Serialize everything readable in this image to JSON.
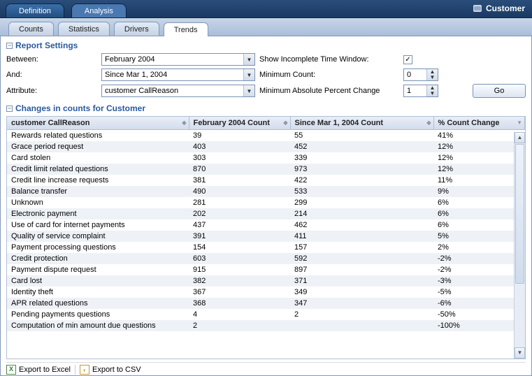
{
  "brand": {
    "label": "Customer"
  },
  "top_tabs": [
    {
      "label": "Definition",
      "active": false
    },
    {
      "label": "Analysis",
      "active": true
    }
  ],
  "sub_tabs": [
    {
      "label": "Counts",
      "active": false
    },
    {
      "label": "Statistics",
      "active": false
    },
    {
      "label": "Drivers",
      "active": false
    },
    {
      "label": "Trends",
      "active": true
    }
  ],
  "sections": {
    "settings_title": "Report Settings",
    "changes_title": "Changes in counts for Customer"
  },
  "settings": {
    "between_label": "Between:",
    "between_value": "February 2004",
    "and_label": "And:",
    "and_value": "Since Mar 1, 2004",
    "attribute_label": "Attribute:",
    "attribute_value": "customer CallReason",
    "show_incomplete_label": "Show Incomplete Time Window:",
    "show_incomplete_checked": true,
    "min_count_label": "Minimum Count:",
    "min_count_value": "0",
    "min_abs_pct_label": "Minimum Absolute Percent Change",
    "min_abs_pct_value": "1",
    "go_label": "Go"
  },
  "table": {
    "columns": [
      {
        "label": "customer CallReason",
        "key": "reason"
      },
      {
        "label": "February 2004 Count",
        "key": "c1"
      },
      {
        "label": "Since Mar 1, 2004 Count",
        "key": "c2"
      },
      {
        "label": "% Count Change",
        "key": "pct"
      }
    ],
    "rows": [
      {
        "reason": "Rewards related questions",
        "c1": "39",
        "c2": "55",
        "pct": "41%"
      },
      {
        "reason": "Grace period request",
        "c1": "403",
        "c2": "452",
        "pct": "12%"
      },
      {
        "reason": "Card stolen",
        "c1": "303",
        "c2": "339",
        "pct": "12%"
      },
      {
        "reason": "Credit limit related questions",
        "c1": "870",
        "c2": "973",
        "pct": "12%"
      },
      {
        "reason": "Credit line increase requests",
        "c1": "381",
        "c2": "422",
        "pct": "11%"
      },
      {
        "reason": "Balance transfer",
        "c1": "490",
        "c2": "533",
        "pct": "9%"
      },
      {
        "reason": "Unknown",
        "c1": "281",
        "c2": "299",
        "pct": "6%"
      },
      {
        "reason": "Electronic payment",
        "c1": "202",
        "c2": "214",
        "pct": "6%"
      },
      {
        "reason": "Use of card for internet payments",
        "c1": "437",
        "c2": "462",
        "pct": "6%"
      },
      {
        "reason": "Quality of service complaint",
        "c1": "391",
        "c2": "411",
        "pct": "5%"
      },
      {
        "reason": "Payment processing questions",
        "c1": "154",
        "c2": "157",
        "pct": "2%"
      },
      {
        "reason": "Credit protection",
        "c1": "603",
        "c2": "592",
        "pct": "-2%"
      },
      {
        "reason": "Payment dispute request",
        "c1": "915",
        "c2": "897",
        "pct": "-2%"
      },
      {
        "reason": "Card lost",
        "c1": "382",
        "c2": "371",
        "pct": "-3%"
      },
      {
        "reason": "Identity theft",
        "c1": "367",
        "c2": "349",
        "pct": "-5%"
      },
      {
        "reason": "APR related questions",
        "c1": "368",
        "c2": "347",
        "pct": "-6%"
      },
      {
        "reason": "Pending payments questions",
        "c1": "4",
        "c2": "2",
        "pct": "-50%"
      },
      {
        "reason": "Computation of min amount due questions",
        "c1": "2",
        "c2": "",
        "pct": "-100%"
      }
    ]
  },
  "footer": {
    "export_excel": "Export to Excel",
    "export_csv": "Export to CSV"
  },
  "colors": {
    "header_bg": "#dde6f2",
    "row_alt": "#eef2f7",
    "accent": "#2a5a9e"
  }
}
